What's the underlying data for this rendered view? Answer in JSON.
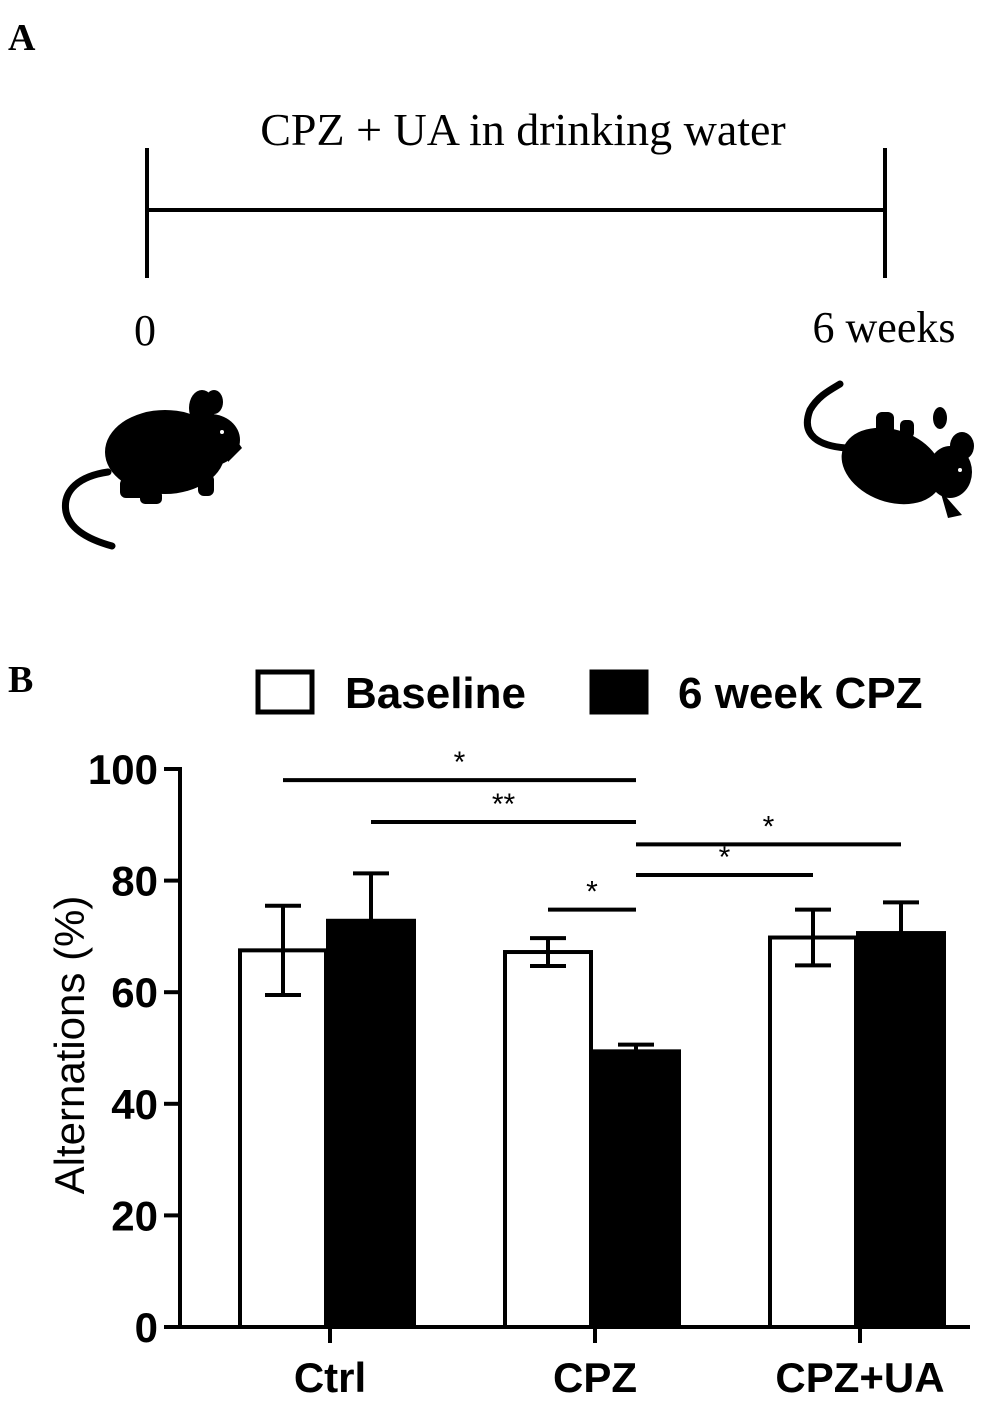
{
  "panel_a": {
    "label": "A",
    "timeline_title": "CPZ + UA in drinking water",
    "start_label": "0",
    "end_label": "6 weeks",
    "icons": [
      "mouse-icon",
      "mouse-icon"
    ]
  },
  "panel_b": {
    "label": "B"
  },
  "chart_data": {
    "type": "bar",
    "title": "",
    "xlabel": "",
    "ylabel": "Alternations (%)",
    "ylim": [
      0,
      100
    ],
    "yticks": [
      "0",
      "20",
      "40",
      "60",
      "80",
      "100"
    ],
    "categories": [
      "Ctrl",
      "CPZ",
      "CPZ+UA"
    ],
    "series": [
      {
        "name": "Baseline",
        "values": [
          67.5,
          67.2,
          69.8
        ],
        "errors": [
          8.0,
          2.5,
          5.0
        ],
        "fill": "#ffffff"
      },
      {
        "name": "6 week CPZ",
        "values": [
          72.8,
          49.4,
          70.6
        ],
        "errors": [
          8.5,
          1.2,
          5.5
        ],
        "fill": "#000000"
      }
    ],
    "legend_position": "top",
    "significance": [
      {
        "from": [
          0,
          0
        ],
        "to": [
          1,
          1
        ],
        "y": 98,
        "label": "*"
      },
      {
        "from": [
          0,
          1
        ],
        "to": [
          1,
          1
        ],
        "y": 90.5,
        "label": "**"
      },
      {
        "from": [
          1,
          1
        ],
        "to": [
          2,
          1
        ],
        "y": 86.5,
        "label": "*"
      },
      {
        "from": [
          1,
          1
        ],
        "to": [
          2,
          0
        ],
        "y": 81.0,
        "label": "*"
      },
      {
        "from": [
          1,
          0
        ],
        "to": [
          1,
          1
        ],
        "y": 74.8,
        "label": "*"
      }
    ]
  }
}
